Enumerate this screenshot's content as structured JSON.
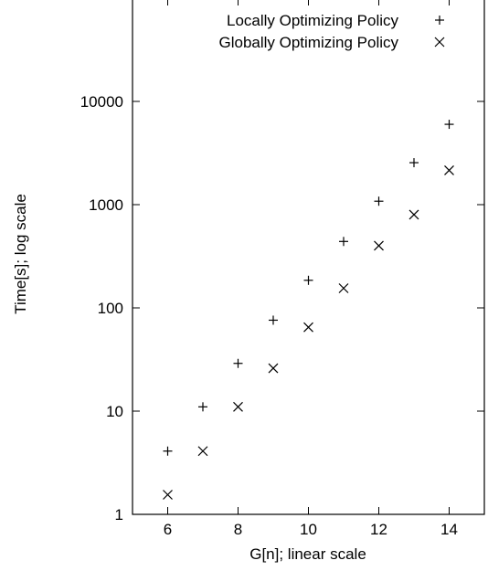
{
  "chart_data": {
    "type": "scatter",
    "title": "",
    "xlabel": "G[n]; linear scale",
    "ylabel": "Time[s]; log scale",
    "xlim": [
      5,
      15
    ],
    "ylim": [
      1,
      100000
    ],
    "yscale": "log",
    "grid": false,
    "legend_position": "top-right",
    "x_ticks": [
      6,
      8,
      10,
      12,
      14
    ],
    "y_ticks": [
      1,
      10,
      100,
      1000,
      10000
    ],
    "x_tick_labels": [
      "6",
      "8",
      "10",
      "12",
      "14"
    ],
    "y_tick_labels": [
      "1",
      "10",
      "100",
      "1000",
      "10000"
    ],
    "series": [
      {
        "name": "Locally Optimizing Policy",
        "marker": "plus",
        "x": [
          6,
          7,
          8,
          9,
          10,
          11,
          12,
          13,
          14
        ],
        "y": [
          4.1,
          11,
          29,
          76,
          185,
          440,
          1080,
          2550,
          6000
        ]
      },
      {
        "name": "Globally Optimizing Policy",
        "marker": "cross",
        "x": [
          6,
          7,
          8,
          9,
          10,
          11,
          12,
          13,
          14
        ],
        "y": [
          1.55,
          4.1,
          11,
          26,
          65,
          155,
          400,
          800,
          2150
        ]
      }
    ]
  }
}
